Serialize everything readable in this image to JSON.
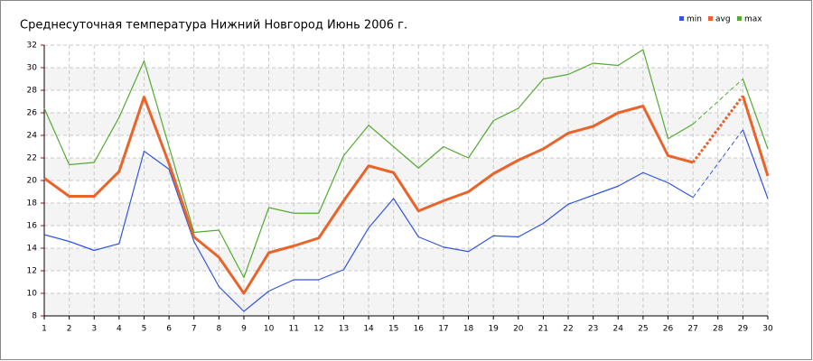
{
  "chart_data": {
    "type": "line",
    "title": "Среднесуточная температура Нижний Новгород  Июнь 2006 г.",
    "x": [
      1,
      2,
      3,
      4,
      5,
      6,
      7,
      8,
      9,
      10,
      11,
      12,
      13,
      14,
      15,
      16,
      17,
      18,
      19,
      20,
      21,
      22,
      23,
      24,
      25,
      26,
      27,
      28,
      29,
      30
    ],
    "series": [
      {
        "name": "min",
        "color": "#3355dd",
        "values": [
          15.2,
          14.6,
          13.8,
          14.4,
          22.6,
          21.0,
          14.6,
          10.6,
          8.4,
          10.2,
          11.2,
          11.2,
          12.1,
          15.8,
          18.4,
          15.0,
          14.1,
          13.7,
          15.1,
          15.0,
          16.2,
          17.9,
          18.7,
          19.5,
          20.7,
          19.8,
          18.5,
          null,
          24.5,
          18.4
        ]
      },
      {
        "name": "avg",
        "color": "#e8642a",
        "values": [
          20.2,
          18.6,
          18.6,
          20.8,
          27.4,
          21.5,
          15.0,
          13.2,
          10.0,
          13.6,
          14.2,
          14.9,
          18.2,
          21.3,
          20.7,
          17.3,
          18.2,
          19.0,
          20.6,
          21.8,
          22.8,
          24.2,
          24.8,
          26.0,
          26.6,
          22.2,
          21.6,
          null,
          27.5,
          20.4
        ]
      },
      {
        "name": "max",
        "color": "#55aa33",
        "values": [
          26.4,
          21.4,
          21.6,
          25.6,
          30.6,
          23.0,
          15.4,
          15.6,
          11.4,
          17.6,
          17.1,
          17.1,
          22.2,
          24.9,
          23.0,
          21.1,
          23.0,
          22.0,
          25.3,
          26.4,
          29.0,
          29.4,
          30.4,
          30.2,
          31.6,
          23.7,
          25.0,
          null,
          29.0,
          22.8
        ]
      }
    ],
    "xlim": [
      1,
      30
    ],
    "xticks": [
      1,
      2,
      3,
      4,
      5,
      6,
      7,
      8,
      9,
      10,
      11,
      12,
      13,
      14,
      15,
      16,
      17,
      18,
      19,
      20,
      21,
      22,
      23,
      24,
      25,
      26,
      27,
      28,
      29,
      30
    ],
    "ylim": [
      8,
      32
    ],
    "yticks": [
      8,
      10,
      12,
      14,
      16,
      18,
      20,
      22,
      24,
      26,
      28,
      30,
      32
    ],
    "grid": true,
    "gap_style": "dashed",
    "legend": "top-right"
  }
}
